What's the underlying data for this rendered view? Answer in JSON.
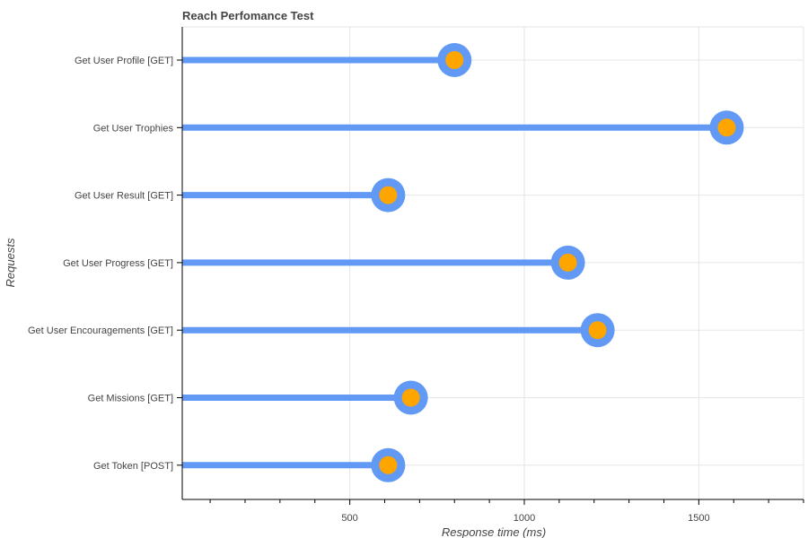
{
  "chart_data": {
    "type": "lollipop",
    "title": "Reach Perfomance Test",
    "xlabel": "Response time (ms)",
    "ylabel": "Requests",
    "xlim": [
      20,
      1800
    ],
    "xticks": [
      500,
      1000,
      1500
    ],
    "xtick_labels": [
      "500",
      "1000",
      "1500"
    ],
    "categories": [
      "Get User Profile [GET]",
      "Get User Trophies",
      "Get User Result [GET]",
      "Get User Progress [GET]",
      "Get User Encouragements [GET]",
      "Get Missions [GET]",
      "Get Token [POST]"
    ],
    "values": [
      800,
      1580,
      610,
      1125,
      1210,
      675,
      610
    ],
    "grid": true,
    "legend": "none",
    "colors": {
      "stem": "#6199f5",
      "marker_outer": "#6199f5",
      "marker_inner": "#ffa500",
      "grid": "#e6e6e6",
      "axis": "#000000",
      "text": "#444444"
    }
  }
}
